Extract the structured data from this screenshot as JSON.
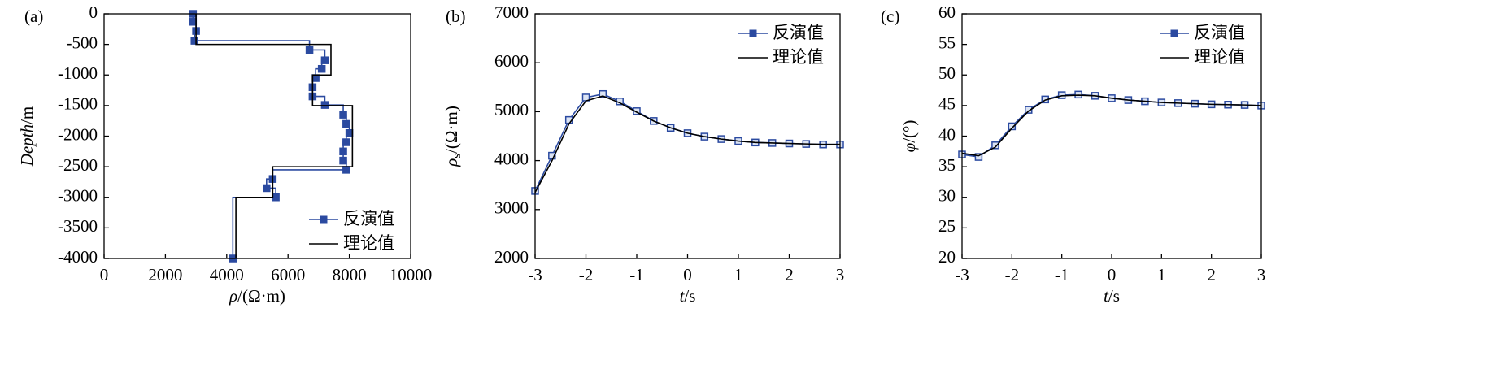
{
  "chart_data": [
    {
      "type": "line",
      "panel": "(a)",
      "xlabel": [
        "ρ",
        "/(Ω·m)"
      ],
      "ylabel": [
        "Depth",
        "/m"
      ],
      "xlim": [
        0,
        10000
      ],
      "xticks": [
        0,
        2000,
        4000,
        6000,
        8000,
        10000
      ],
      "ylim": [
        -4000,
        0
      ],
      "yticks": [
        0,
        -500,
        -1000,
        -1500,
        -2000,
        -2500,
        -3000,
        -3500,
        -4000
      ],
      "legend": "lower right",
      "series": [
        {
          "name": "反演值",
          "color": "#2b4aa0",
          "marker": "square",
          "marker_fill": "#2b4aa0",
          "step": true,
          "x": [
            2900,
            2900,
            3000,
            2950,
            6700,
            7200,
            7100,
            6900,
            6800,
            6800,
            7200,
            7800,
            7900,
            8000,
            7900,
            7800,
            7800,
            7900,
            5500,
            5300,
            5600,
            4200
          ],
          "values": [
            0,
            -130,
            -280,
            -440,
            -590,
            -760,
            -900,
            -1050,
            -1200,
            -1350,
            -1490,
            -1650,
            -1800,
            -1950,
            -2100,
            -2250,
            -2400,
            -2550,
            -2700,
            -2850,
            -3000,
            -4000
          ]
        },
        {
          "name": "理论值",
          "color": "#000000",
          "x": [
            3000,
            3000,
            7400,
            7400,
            6800,
            6800,
            8100,
            8100,
            5500,
            5500,
            4300,
            4300
          ],
          "values": [
            0,
            -500,
            -500,
            -1000,
            -1000,
            -1500,
            -1500,
            -2500,
            -2500,
            -3000,
            -3000,
            -4000
          ]
        }
      ]
    },
    {
      "type": "line",
      "panel": "(b)",
      "xlabel": [
        "t",
        "/s"
      ],
      "ylabel": [
        "ρ",
        "s",
        "/(Ω·m)"
      ],
      "xlim": [
        -3,
        3
      ],
      "xticks": [
        -3,
        -2,
        -1,
        0,
        1,
        2,
        3
      ],
      "ylim": [
        2000,
        7000
      ],
      "yticks": [
        2000,
        3000,
        4000,
        5000,
        6000,
        7000
      ],
      "legend": "upper right",
      "x": [
        -3,
        -2.667,
        -2.333,
        -2,
        -1.667,
        -1.333,
        -1,
        -0.667,
        -0.333,
        0,
        0.333,
        0.667,
        1,
        1.333,
        1.667,
        2,
        2.333,
        2.667,
        3
      ],
      "series": [
        {
          "name": "反演值",
          "color": "#2b4aa0",
          "marker": "square",
          "marker_fill": "#dce4f4",
          "values": [
            3380,
            4100,
            4830,
            5290,
            5360,
            5210,
            5010,
            4810,
            4670,
            4560,
            4490,
            4440,
            4400,
            4370,
            4360,
            4350,
            4340,
            4330,
            4330
          ]
        },
        {
          "name": "理论值",
          "color": "#000000",
          "values": [
            3350,
            4000,
            4750,
            5220,
            5320,
            5180,
            4990,
            4810,
            4670,
            4560,
            4490,
            4440,
            4400,
            4370,
            4360,
            4350,
            4340,
            4330,
            4330
          ]
        }
      ]
    },
    {
      "type": "line",
      "panel": "(c)",
      "xlabel": [
        "t",
        "/s"
      ],
      "ylabel": [
        "φ",
        "/(°)"
      ],
      "xlim": [
        -3,
        3
      ],
      "xticks": [
        -3,
        -2,
        -1,
        0,
        1,
        2,
        3
      ],
      "ylim": [
        20,
        60
      ],
      "yticks": [
        20,
        25,
        30,
        35,
        40,
        45,
        50,
        55,
        60
      ],
      "legend": "upper right",
      "x": [
        -3,
        -2.667,
        -2.333,
        -2,
        -1.667,
        -1.333,
        -1,
        -0.667,
        -0.333,
        0,
        0.333,
        0.667,
        1,
        1.333,
        1.667,
        2,
        2.333,
        2.667,
        3
      ],
      "series": [
        {
          "name": "反演值",
          "color": "#2b4aa0",
          "marker": "square",
          "marker_fill": "#dce4f4",
          "values": [
            37,
            36.6,
            38.5,
            41.6,
            44.3,
            46.0,
            46.7,
            46.8,
            46.6,
            46.2,
            45.9,
            45.7,
            45.5,
            45.4,
            45.3,
            45.2,
            45.15,
            45.1,
            45.0
          ]
        },
        {
          "name": "理论值",
          "color": "#000000",
          "values": [
            37.2,
            36.8,
            38.2,
            41.3,
            44.1,
            45.9,
            46.6,
            46.7,
            46.6,
            46.2,
            45.9,
            45.7,
            45.5,
            45.4,
            45.3,
            45.2,
            45.15,
            45.1,
            45.0
          ]
        }
      ]
    }
  ]
}
